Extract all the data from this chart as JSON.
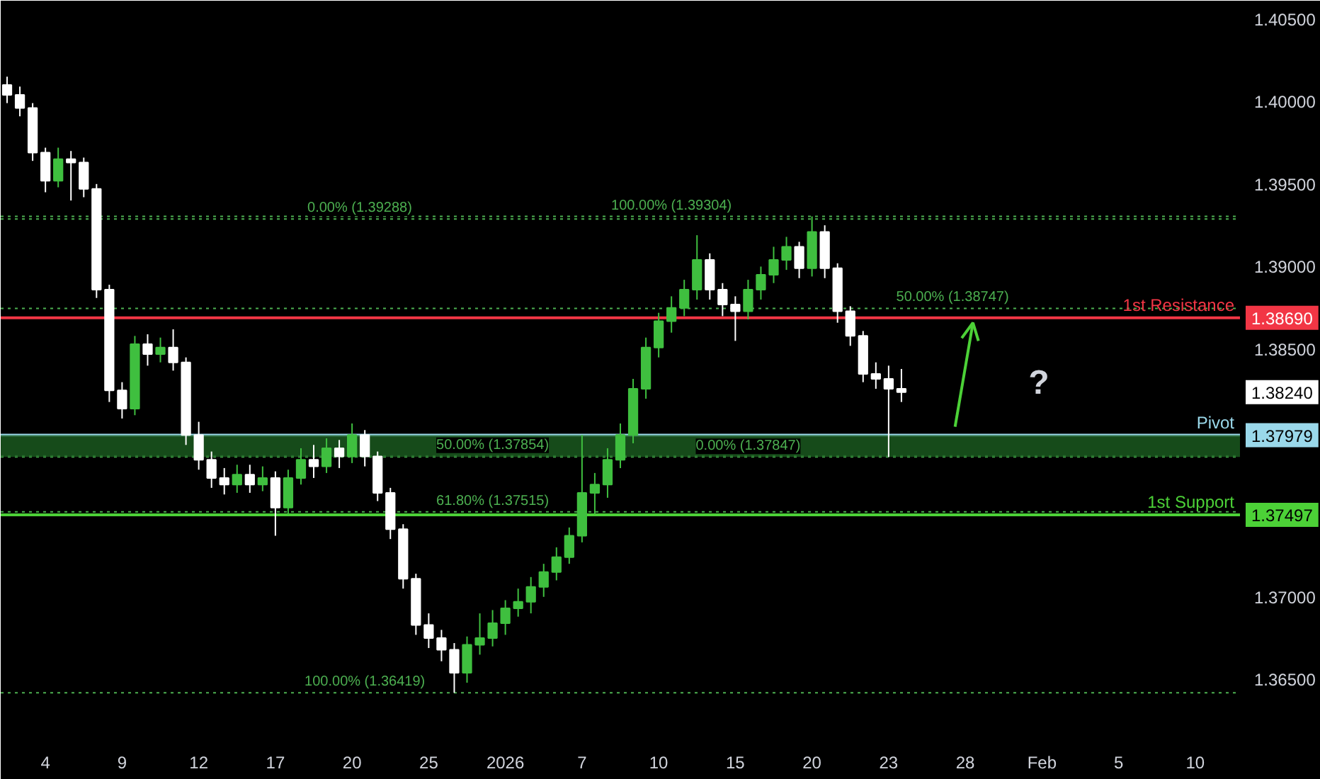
{
  "chart_data": {
    "type": "candlestick",
    "categories": [
      null,
      null,
      null,
      "4",
      null,
      null,
      null,
      null,
      null,
      "9",
      null,
      null,
      null,
      null,
      null,
      "12",
      null,
      null,
      null,
      null,
      null,
      "17",
      null,
      null,
      null,
      null,
      null,
      "20",
      null,
      null,
      null,
      null,
      null,
      "25",
      null,
      null,
      null,
      null,
      null,
      "2026",
      null,
      null,
      null,
      null,
      null,
      "7",
      null,
      null,
      null,
      null,
      null,
      "10",
      null,
      null,
      null,
      null,
      null,
      "15",
      null,
      null,
      null,
      null,
      null,
      "20",
      null,
      null,
      null,
      null,
      null,
      "23",
      null,
      null,
      null,
      null,
      null,
      "28",
      null,
      null,
      null,
      null,
      null,
      "Feb",
      null,
      null,
      null,
      null,
      null,
      "5",
      null,
      null,
      null,
      null,
      null,
      "10",
      null,
      null,
      null
    ],
    "ohlc": [
      [
        1.401,
        1.4015,
        1.3999,
        1.4004
      ],
      [
        1.4004,
        1.4009,
        1.3991,
        1.3996
      ],
      [
        1.3996,
        1.3999,
        1.3964,
        1.3969
      ],
      [
        1.3969,
        1.3972,
        1.3945,
        1.3952
      ],
      [
        1.3952,
        1.3972,
        1.3948,
        1.3965
      ],
      [
        1.3965,
        1.397,
        1.394,
        1.3963
      ],
      [
        1.3963,
        1.3966,
        1.3942,
        1.3947
      ],
      [
        1.3947,
        1.395,
        1.3881,
        1.3886
      ],
      [
        1.3886,
        1.3889,
        1.3818,
        1.3825
      ],
      [
        1.3825,
        1.383,
        1.3808,
        1.3814
      ],
      [
        1.3814,
        1.3858,
        1.381,
        1.3853
      ],
      [
        1.3853,
        1.3859,
        1.384,
        1.3847
      ],
      [
        1.3847,
        1.3857,
        1.3842,
        1.3851
      ],
      [
        1.3851,
        1.3862,
        1.3837,
        1.3842
      ],
      [
        1.3842,
        1.3845,
        1.3792,
        1.3798
      ],
      [
        1.3798,
        1.3806,
        1.3777,
        1.3783
      ],
      [
        1.3783,
        1.3788,
        1.3766,
        1.3772
      ],
      [
        1.3772,
        1.3778,
        1.3762,
        1.3768
      ],
      [
        1.3768,
        1.378,
        1.3763,
        1.3774
      ],
      [
        1.3774,
        1.378,
        1.3763,
        1.3768
      ],
      [
        1.3768,
        1.3779,
        1.3764,
        1.3772
      ],
      [
        1.3772,
        1.3776,
        1.3737,
        1.3754
      ],
      [
        1.3754,
        1.3777,
        1.375,
        1.3772
      ],
      [
        1.3772,
        1.379,
        1.3768,
        1.3783
      ],
      [
        1.3783,
        1.3792,
        1.3772,
        1.3779
      ],
      [
        1.3779,
        1.3796,
        1.3775,
        1.379
      ],
      [
        1.379,
        1.3795,
        1.3778,
        1.3785
      ],
      [
        1.3785,
        1.3805,
        1.3781,
        1.3798
      ],
      [
        1.3798,
        1.3801,
        1.3779,
        1.3785
      ],
      [
        1.3785,
        1.3788,
        1.3758,
        1.3763
      ],
      [
        1.3763,
        1.3766,
        1.3735,
        1.3741
      ],
      [
        1.3741,
        1.3744,
        1.3705,
        1.3711
      ],
      [
        1.3711,
        1.3714,
        1.3677,
        1.3683
      ],
      [
        1.3683,
        1.369,
        1.3669,
        1.3675
      ],
      [
        1.3675,
        1.368,
        1.3661,
        1.3668
      ],
      [
        1.3668,
        1.3672,
        1.36419,
        1.3654
      ],
      [
        1.3654,
        1.3676,
        1.3648,
        1.3671
      ],
      [
        1.3671,
        1.369,
        1.3665,
        1.3675
      ],
      [
        1.3675,
        1.3692,
        1.367,
        1.3684
      ],
      [
        1.3684,
        1.3698,
        1.3677,
        1.3693
      ],
      [
        1.3693,
        1.3705,
        1.3688,
        1.3697
      ],
      [
        1.3697,
        1.3712,
        1.369,
        1.3706
      ],
      [
        1.3706,
        1.372,
        1.37,
        1.3715
      ],
      [
        1.3715,
        1.373,
        1.371,
        1.3724
      ],
      [
        1.3724,
        1.3742,
        1.372,
        1.3737
      ],
      [
        1.3737,
        1.3798,
        1.3733,
        1.3763
      ],
      [
        1.3763,
        1.3775,
        1.375,
        1.3768
      ],
      [
        1.3768,
        1.379,
        1.376,
        1.3783
      ],
      [
        1.3783,
        1.3805,
        1.3778,
        1.3798
      ],
      [
        1.3798,
        1.3832,
        1.3793,
        1.3826
      ],
      [
        1.3826,
        1.3857,
        1.382,
        1.3851
      ],
      [
        1.3851,
        1.3872,
        1.3845,
        1.3867
      ],
      [
        1.3867,
        1.3882,
        1.386,
        1.3875
      ],
      [
        1.3875,
        1.3892,
        1.387,
        1.3886
      ],
      [
        1.3886,
        1.3919,
        1.388,
        1.3904
      ],
      [
        1.3904,
        1.3908,
        1.388,
        1.3886
      ],
      [
        1.3886,
        1.389,
        1.387,
        1.3877
      ],
      [
        1.3877,
        1.3882,
        1.3855,
        1.3873
      ],
      [
        1.3873,
        1.3892,
        1.3868,
        1.3886
      ],
      [
        1.3886,
        1.39,
        1.388,
        1.3895
      ],
      [
        1.3895,
        1.3912,
        1.389,
        1.3904
      ],
      [
        1.3904,
        1.3918,
        1.3898,
        1.3912
      ],
      [
        1.3912,
        1.3915,
        1.3893,
        1.3899
      ],
      [
        1.3899,
        1.39304,
        1.3894,
        1.3921
      ],
      [
        1.3921,
        1.3925,
        1.3893,
        1.3899
      ],
      [
        1.3899,
        1.3902,
        1.3866,
        1.3873
      ],
      [
        1.3873,
        1.3876,
        1.3852,
        1.3858
      ],
      [
        1.3858,
        1.3861,
        1.383,
        1.3835
      ],
      [
        1.3835,
        1.3842,
        1.3826,
        1.3832
      ],
      [
        1.3832,
        1.384,
        1.37847,
        1.3826
      ],
      [
        1.3826,
        1.3838,
        1.3818,
        1.3824
      ],
      null,
      null,
      null,
      null,
      null,
      null,
      null,
      null,
      null,
      null,
      null,
      null,
      null,
      null,
      null,
      null,
      null,
      null,
      null,
      null,
      null,
      null,
      null,
      null,
      null,
      null
    ],
    "colors": [
      "#ffffff",
      "#ffffff",
      "#ffffff",
      "#ffffff",
      "#3fbf3f",
      "#ffffff",
      "#ffffff",
      "#ffffff",
      "#ffffff",
      "#ffffff",
      "#3fbf3f",
      "#ffffff",
      "#3fbf3f",
      "#ffffff",
      "#ffffff",
      "#ffffff",
      "#ffffff",
      "#ffffff",
      "#3fbf3f",
      "#ffffff",
      "#3fbf3f",
      "#ffffff",
      "#3fbf3f",
      "#3fbf3f",
      "#ffffff",
      "#3fbf3f",
      "#ffffff",
      "#3fbf3f",
      "#ffffff",
      "#ffffff",
      "#ffffff",
      "#ffffff",
      "#ffffff",
      "#ffffff",
      "#ffffff",
      "#ffffff",
      "#3fbf3f",
      "#3fbf3f",
      "#3fbf3f",
      "#3fbf3f",
      "#3fbf3f",
      "#3fbf3f",
      "#3fbf3f",
      "#3fbf3f",
      "#3fbf3f",
      "#3fbf3f",
      "#3fbf3f",
      "#3fbf3f",
      "#3fbf3f",
      "#3fbf3f",
      "#3fbf3f",
      "#3fbf3f",
      "#3fbf3f",
      "#3fbf3f",
      "#3fbf3f",
      "#ffffff",
      "#ffffff",
      "#ffffff",
      "#3fbf3f",
      "#3fbf3f",
      "#3fbf3f",
      "#3fbf3f",
      "#ffffff",
      "#3fbf3f",
      "#ffffff",
      "#ffffff",
      "#ffffff",
      "#ffffff",
      "#ffffff",
      "#ffffff",
      "#ffffff",
      null,
      null,
      null,
      null,
      null,
      null,
      null,
      null,
      null,
      null,
      null,
      null,
      null,
      null,
      null,
      null,
      null,
      null,
      null,
      null,
      null,
      null,
      null,
      null,
      null,
      null
    ],
    "ylim": [
      1.3615,
      1.4061
    ],
    "yticks": [
      {
        "value": 1.365,
        "label": "1.36500"
      },
      {
        "value": 1.37,
        "label": "1.37000"
      },
      {
        "value": 1.37497,
        "label": "1.37497"
      },
      {
        "value": 1.37979,
        "label": "1.37979"
      },
      {
        "value": 1.3824,
        "label": "1.38240"
      },
      {
        "value": 1.3869,
        "label": "1.38690"
      },
      {
        "value": 1.385,
        "label": "1.38500"
      },
      {
        "value": 1.39,
        "label": "1.39000"
      },
      {
        "value": 1.395,
        "label": "1.39500"
      },
      {
        "value": 1.4,
        "label": "1.40000"
      },
      {
        "value": 1.405,
        "label": "1.40500"
      }
    ],
    "bands": [
      {
        "axis": "y",
        "from": 1.37847,
        "to": 1.37979,
        "color": "#1b5e20"
      }
    ],
    "ref_lines": [
      {
        "axis": "y",
        "value": 1.3869,
        "label": "1st Resistance",
        "color": "#f23645",
        "line_style": "solid"
      },
      {
        "axis": "y",
        "value": 1.37979,
        "label": "Pivot",
        "color": "#9ad8ea",
        "line_style": "solid"
      },
      {
        "axis": "y",
        "value": 1.37497,
        "label": "1st Support",
        "color": "#4cd137",
        "line_style": "solid"
      },
      {
        "axis": "y",
        "value": 1.39288,
        "color": "#4caf50",
        "line_style": "dotted"
      },
      {
        "axis": "y",
        "value": 1.37854,
        "color": "#4caf50",
        "line_style": "dotted"
      },
      {
        "axis": "y",
        "value": 1.37515,
        "color": "#4caf50",
        "line_style": "dotted"
      },
      {
        "axis": "y",
        "value": 1.36419,
        "color": "#4caf50",
        "line_style": "dotted"
      },
      {
        "axis": "y",
        "value": 1.39304,
        "color": "#4caf50",
        "line_style": "dotted"
      },
      {
        "axis": "y",
        "value": 1.38747,
        "color": "#4caf50",
        "line_style": "dotted"
      },
      {
        "axis": "y",
        "value": 1.37847,
        "color": "#4caf50",
        "line_style": "dotted"
      }
    ],
    "annotations": [
      {
        "text": "0.00% (1.39288)",
        "y": 1.39288
      },
      {
        "text": "50.00% (1.37854)",
        "y": 1.37854
      },
      {
        "text": "61.80% (1.37515)",
        "y": 1.37515
      },
      {
        "text": "100.00% (1.36419)",
        "y": 1.36419
      },
      {
        "text": "100.00% (1.39304)",
        "y": 1.39304
      },
      {
        "text": "50.00% (1.38747)",
        "y": 1.38747
      },
      {
        "text": "0.00% (1.37847)",
        "y": 1.37847
      },
      "?"
    ],
    "grid": false
  }
}
